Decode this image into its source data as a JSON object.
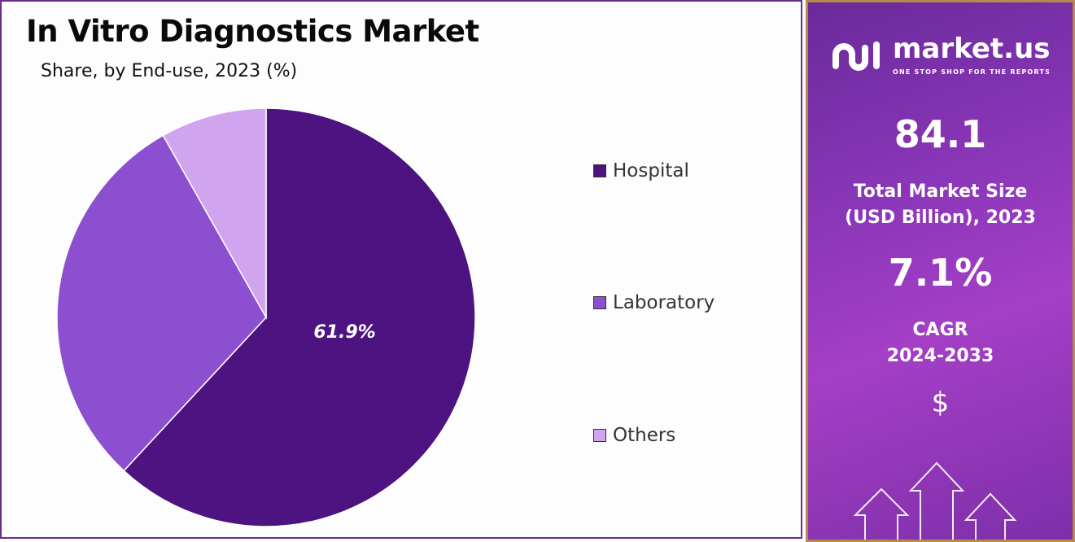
{
  "chart_data": {
    "type": "pie",
    "title": "In Vitro Diagnostics Market",
    "subtitle": "Share, by End-use, 2023 (%)",
    "categories": [
      "Hospital",
      "Laboratory",
      "Others"
    ],
    "values": [
      61.9,
      29.9,
      8.2
    ],
    "data_labels": [
      "61.9%",
      "",
      ""
    ],
    "colors": [
      "#4d1380",
      "#8c4fd0",
      "#d0a4ee"
    ],
    "legend_position": "right"
  },
  "side_panel": {
    "brand": "market.us",
    "tagline": "ONE STOP SHOP FOR THE REPORTS",
    "market_size": "84.1",
    "market_size_label_1": "Total Market Size",
    "market_size_label_2": "(USD Billion), 2023",
    "cagr": "7.1%",
    "cagr_label_1": "CAGR",
    "cagr_label_2": "2024-2033",
    "currency_symbol": "$"
  }
}
